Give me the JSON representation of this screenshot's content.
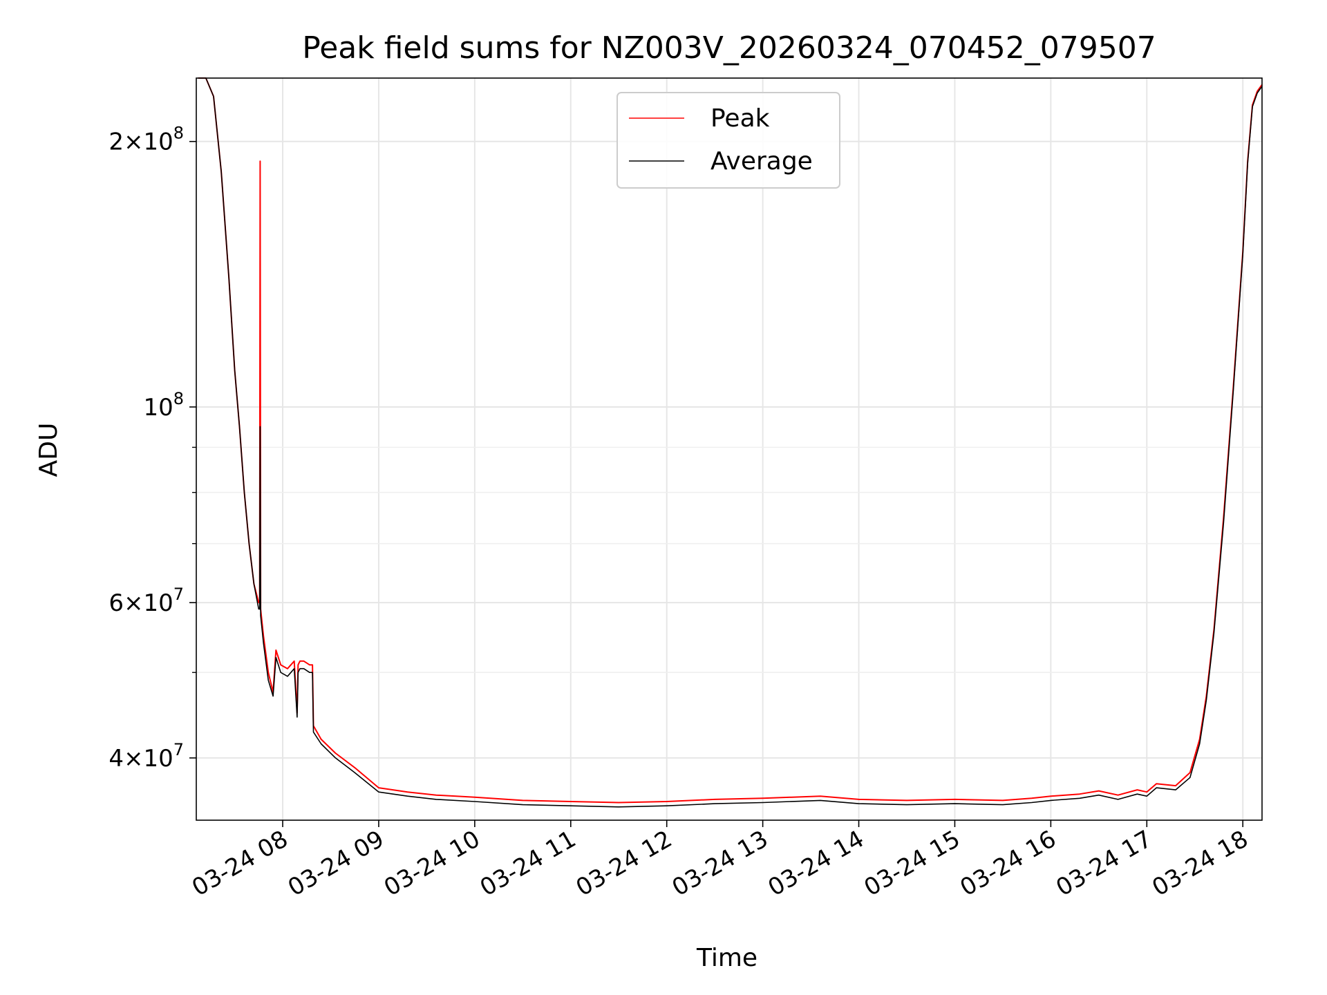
{
  "chart_data": {
    "type": "line",
    "title": "Peak field sums for NZ003V_20260324_070452_079507",
    "xlabel": "Time",
    "ylabel": "ADU",
    "yscale": "log",
    "ylim": [
      34000000,
      236000000
    ],
    "xlim_hours": [
      7.1,
      18.2
    ],
    "grid": true,
    "legend_position": "upper-center",
    "x_ticks": [
      {
        "hour": 8,
        "label": "03-24 08"
      },
      {
        "hour": 9,
        "label": "03-24 09"
      },
      {
        "hour": 10,
        "label": "03-24 10"
      },
      {
        "hour": 11,
        "label": "03-24 11"
      },
      {
        "hour": 12,
        "label": "03-24 12"
      },
      {
        "hour": 13,
        "label": "03-24 13"
      },
      {
        "hour": 14,
        "label": "03-24 14"
      },
      {
        "hour": 15,
        "label": "03-24 15"
      },
      {
        "hour": 16,
        "label": "03-24 16"
      },
      {
        "hour": 17,
        "label": "03-24 17"
      },
      {
        "hour": 18,
        "label": "03-24 18"
      }
    ],
    "y_major_ticks": [
      {
        "value": 40000000,
        "mant": "4",
        "exp": "7"
      },
      {
        "value": 60000000,
        "mant": "6",
        "exp": "7"
      },
      {
        "value": 100000000,
        "mant": "",
        "exp": "8"
      },
      {
        "value": 200000000,
        "mant": "2",
        "exp": "8"
      }
    ],
    "y_minor_ticks": [
      50000000,
      70000000,
      80000000,
      90000000
    ],
    "series": [
      {
        "name": "Peak",
        "color": "#ff0000",
        "x_hours": [
          7.12,
          7.2,
          7.28,
          7.36,
          7.44,
          7.5,
          7.55,
          7.6,
          7.65,
          7.7,
          7.75,
          7.76,
          7.765,
          7.77,
          7.8,
          7.85,
          7.9,
          7.93,
          7.98,
          8.05,
          8.12,
          8.15,
          8.16,
          8.18,
          8.22,
          8.28,
          8.31,
          8.32,
          8.4,
          8.55,
          8.75,
          9.0,
          9.3,
          9.6,
          10.0,
          10.5,
          11.0,
          11.5,
          12.0,
          12.5,
          13.0,
          13.6,
          14.0,
          14.5,
          15.0,
          15.5,
          15.8,
          16.0,
          16.3,
          16.5,
          16.7,
          16.9,
          17.0,
          17.1,
          17.3,
          17.45,
          17.55,
          17.62,
          17.7,
          17.8,
          17.9,
          18.0,
          18.05,
          18.1,
          18.15,
          18.2
        ],
        "y": [
          236000000,
          236000000,
          225000000,
          185000000,
          140000000,
          110000000,
          95000000,
          80000000,
          70000000,
          63000000,
          60000000,
          60000000,
          190000000,
          59000000,
          55000000,
          50000000,
          47500000,
          53000000,
          51000000,
          50500000,
          51500000,
          45000000,
          51000000,
          51500000,
          51500000,
          51000000,
          51000000,
          43500000,
          42000000,
          40500000,
          39000000,
          37000000,
          36600000,
          36300000,
          36100000,
          35800000,
          35700000,
          35600000,
          35700000,
          35900000,
          36000000,
          36200000,
          35900000,
          35800000,
          35900000,
          35800000,
          36000000,
          36200000,
          36400000,
          36700000,
          36300000,
          36800000,
          36600000,
          37400000,
          37200000,
          38500000,
          42000000,
          47000000,
          56000000,
          75000000,
          105000000,
          150000000,
          190000000,
          220000000,
          228000000,
          232000000
        ]
      },
      {
        "name": "Average",
        "color": "#000000",
        "x_hours": [
          7.12,
          7.2,
          7.28,
          7.36,
          7.44,
          7.5,
          7.55,
          7.6,
          7.65,
          7.7,
          7.75,
          7.76,
          7.765,
          7.77,
          7.8,
          7.85,
          7.9,
          7.93,
          7.98,
          8.05,
          8.12,
          8.15,
          8.16,
          8.18,
          8.22,
          8.28,
          8.31,
          8.32,
          8.4,
          8.55,
          8.75,
          9.0,
          9.3,
          9.6,
          10.0,
          10.5,
          11.0,
          11.5,
          12.0,
          12.5,
          13.0,
          13.6,
          14.0,
          14.5,
          15.0,
          15.5,
          15.8,
          16.0,
          16.3,
          16.5,
          16.7,
          16.9,
          17.0,
          17.1,
          17.3,
          17.45,
          17.55,
          17.62,
          17.7,
          17.8,
          17.9,
          18.0,
          18.05,
          18.1,
          18.15,
          18.2
        ],
        "y": [
          236000000,
          236000000,
          225000000,
          185000000,
          140000000,
          110000000,
          95000000,
          80000000,
          70000000,
          63000000,
          59000000,
          59000000,
          95000000,
          58000000,
          54000000,
          49000000,
          47000000,
          52000000,
          50000000,
          49500000,
          50500000,
          44500000,
          50000000,
          50500000,
          50500000,
          50000000,
          50000000,
          42800000,
          41500000,
          40000000,
          38500000,
          36600000,
          36200000,
          35900000,
          35700000,
          35400000,
          35300000,
          35200000,
          35300000,
          35500000,
          35600000,
          35800000,
          35500000,
          35400000,
          35500000,
          35400000,
          35600000,
          35800000,
          36000000,
          36300000,
          35900000,
          36400000,
          36200000,
          37000000,
          36800000,
          38000000,
          41500000,
          46500000,
          55500000,
          74000000,
          104000000,
          149000000,
          189000000,
          219000000,
          227000000,
          231000000
        ]
      }
    ]
  }
}
